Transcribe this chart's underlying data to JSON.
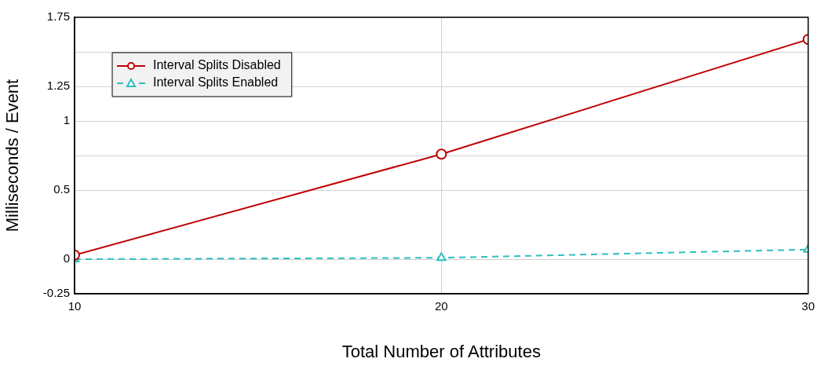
{
  "chart_data": {
    "type": "line",
    "xlabel": "Total Number of Attributes",
    "ylabel": "Milliseconds / Event",
    "x": [
      10,
      20,
      30
    ],
    "series": [
      {
        "name": "Interval Splits Disabled",
        "color": "#c00000",
        "values": [
          0.03,
          0.76,
          1.59
        ],
        "marker": "circle",
        "line_style": "solid"
      },
      {
        "name": "Interval Splits Enabled",
        "color": "#2ebfbf",
        "values": [
          0,
          0.01,
          0.07
        ],
        "marker": "triangle",
        "line_style": "dashed"
      }
    ],
    "xlim": [
      10,
      30
    ],
    "xticks": [
      10,
      20,
      30
    ],
    "ylim": [
      -0.25,
      1.75
    ],
    "yticks": [
      -0.25,
      0,
      0.5,
      {
        "value": 0.75,
        "label": null
      },
      1,
      1.25,
      {
        "value": 1.5,
        "label": null
      },
      1.75
    ],
    "grid": true,
    "legend": "top left"
  }
}
